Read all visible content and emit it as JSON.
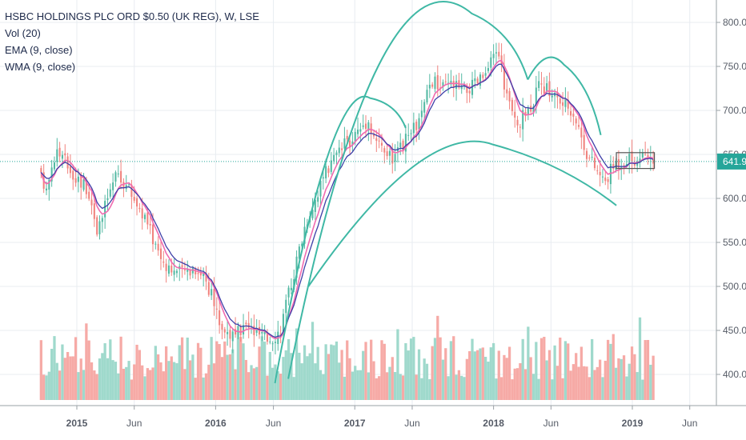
{
  "legend": {
    "title": "HSBC HOLDINGS PLC ORD $0.50 (UK REG), W, LSE",
    "volume": "Vol (20)",
    "ema": "EMA (9, close)",
    "wma": "WMA (9, close)"
  },
  "colors": {
    "up": "#53b9a3",
    "down": "#f0837e",
    "up_volume": "#9fd9cc",
    "down_volume": "#f6aaa6",
    "ema": "#f06bb0",
    "wma": "#3f3fa8",
    "drawing": "#3fb8a5",
    "price_line": "#26a69a",
    "grid": "#e8ecf1",
    "axis_text": "#555b66"
  },
  "chart_data": {
    "type": "candlestick",
    "title": "HSBC HOLDINGS PLC ORD $0.50 (UK REG), W, LSE",
    "interval": "W",
    "exchange": "LSE",
    "y_axis": {
      "position": "right",
      "ticks": [
        "400.0",
        "450.0",
        "500.0",
        "550.0",
        "600.0",
        "650.0",
        "700.0",
        "750.0",
        "800.0"
      ],
      "range": [
        372,
        820
      ]
    },
    "x_axis": {
      "ticks": [
        "2015",
        "Jun",
        "2016",
        "Jun",
        "2017",
        "Jun",
        "2018",
        "Jun",
        "2019",
        "Jun"
      ],
      "tick_dates": [
        "2015-01-01",
        "2015-06-01",
        "2016-01-01",
        "2016-06-01",
        "2017-01-01",
        "2017-06-01",
        "2018-01-01",
        "2018-06-01",
        "2019-01-01",
        "2019-06-01"
      ],
      "range": [
        "2014-09-26",
        "2019-08-20"
      ]
    },
    "last_price": "641.9",
    "grid": true,
    "legend_position": "top-left",
    "price_path": [
      [
        "2014-09-29",
        632
      ],
      [
        "2014-10-17",
        608
      ],
      [
        "2014-11-14",
        655
      ],
      [
        "2014-12-12",
        640
      ],
      [
        "2015-01-09",
        623
      ],
      [
        "2015-02-06",
        612
      ],
      [
        "2015-03-06",
        560
      ],
      [
        "2015-03-27",
        598
      ],
      [
        "2015-04-24",
        628
      ],
      [
        "2015-05-22",
        612
      ],
      [
        "2015-07-03",
        580
      ],
      [
        "2015-08-21",
        530
      ],
      [
        "2015-10-02",
        515
      ],
      [
        "2015-11-13",
        522
      ],
      [
        "2015-12-11",
        512
      ],
      [
        "2016-01-22",
        455
      ],
      [
        "2016-02-26",
        442
      ],
      [
        "2016-03-25",
        455
      ],
      [
        "2016-04-22",
        448
      ],
      [
        "2016-05-20",
        440
      ],
      [
        "2016-06-24",
        448
      ],
      [
        "2016-07-22",
        498
      ],
      [
        "2016-09-02",
        575
      ],
      [
        "2016-10-14",
        620
      ],
      [
        "2016-11-18",
        648
      ],
      [
        "2016-12-30",
        668
      ],
      [
        "2017-02-10",
        690
      ],
      [
        "2017-03-10",
        662
      ],
      [
        "2017-04-21",
        643
      ],
      [
        "2017-05-26",
        668
      ],
      [
        "2017-06-30",
        690
      ],
      [
        "2017-07-28",
        735
      ],
      [
        "2017-08-25",
        725
      ],
      [
        "2017-09-22",
        730
      ],
      [
        "2017-10-20",
        722
      ],
      [
        "2017-11-17",
        728
      ],
      [
        "2017-12-22",
        742
      ],
      [
        "2018-01-19",
        772
      ],
      [
        "2018-02-09",
        722
      ],
      [
        "2018-03-09",
        680
      ],
      [
        "2018-04-13",
        705
      ],
      [
        "2018-05-11",
        728
      ],
      [
        "2018-06-08",
        722
      ],
      [
        "2018-07-06",
        708
      ],
      [
        "2018-08-03",
        702
      ],
      [
        "2018-09-14",
        648
      ],
      [
        "2018-10-26",
        618
      ],
      [
        "2018-11-23",
        640
      ],
      [
        "2018-12-21",
        646
      ],
      [
        "2019-01-25",
        644
      ],
      [
        "2019-02-22",
        642
      ]
    ],
    "volume_range": [
      0,
      1
    ]
  }
}
